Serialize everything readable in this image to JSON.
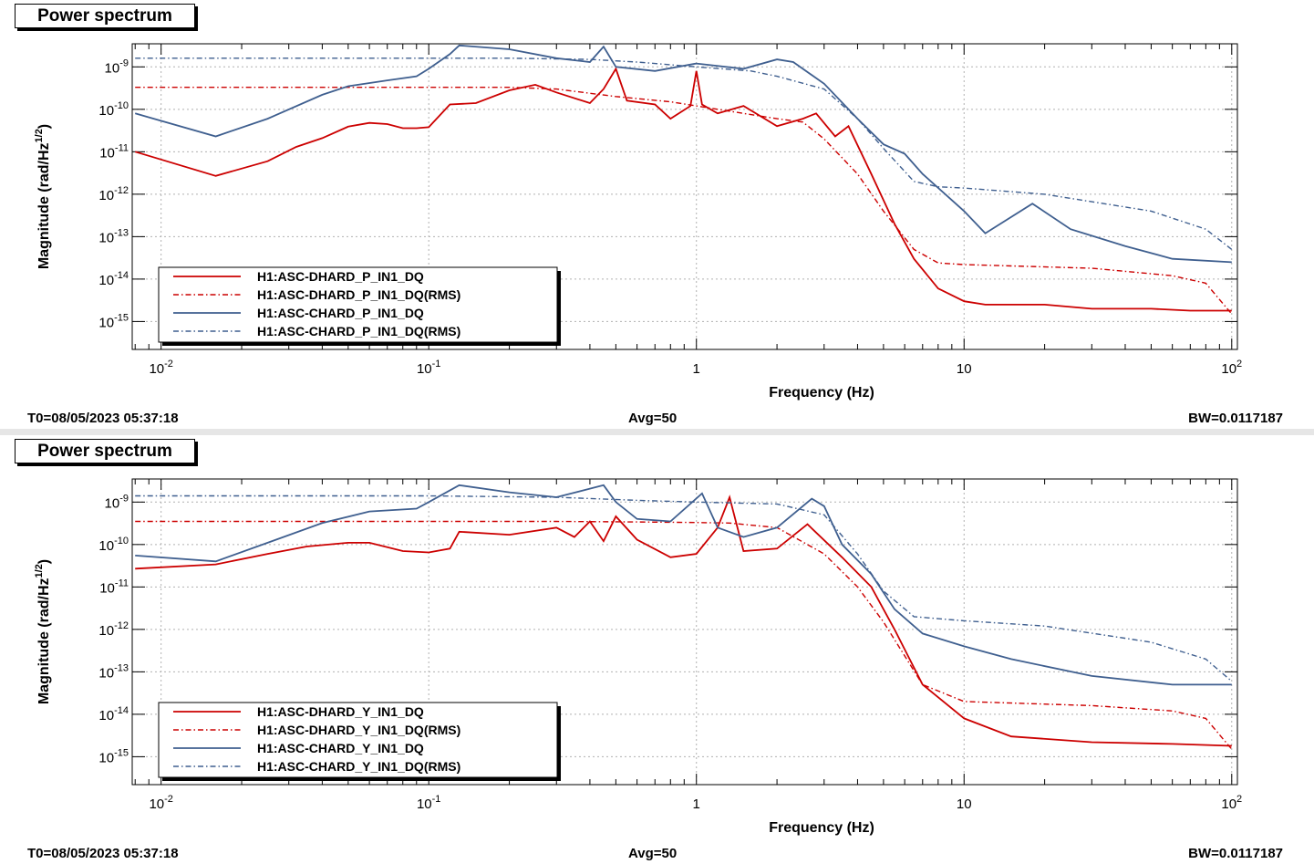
{
  "colors": {
    "red": "#cc0000",
    "blue": "#3f5f8f",
    "grid": "#b0b0b0"
  },
  "panels": [
    {
      "title": "Power spectrum",
      "footer": {
        "t0": "T0=08/05/2023 05:37:18",
        "avg": "Avg=50",
        "bw": "BW=0.0117187"
      },
      "legend": [
        "H1:ASC-DHARD_P_IN1_DQ",
        "H1:ASC-DHARD_P_IN1_DQ(RMS)",
        "H1:ASC-CHARD_P_IN1_DQ",
        "H1:ASC-CHARD_P_IN1_DQ(RMS)"
      ]
    },
    {
      "title": "Power spectrum",
      "footer": {
        "t0": "T0=08/05/2023 05:37:18",
        "avg": "Avg=50",
        "bw": "BW=0.0117187"
      },
      "legend": [
        "H1:ASC-DHARD_Y_IN1_DQ",
        "H1:ASC-DHARD_Y_IN1_DQ(RMS)",
        "H1:ASC-CHARD_Y_IN1_DQ",
        "H1:ASC-CHARD_Y_IN1_DQ(RMS)"
      ]
    }
  ],
  "chart_data": [
    {
      "type": "line",
      "title": "Power spectrum",
      "xlabel": "Frequency (Hz)",
      "ylabel": "Magnitude (rad/Hz^{1/2})",
      "xscale": "log",
      "yscale": "log",
      "xlim": [
        0.0078,
        105
      ],
      "ylim": [
        2.2e-16,
        3.5e-09
      ],
      "xticks": [
        [
          "10^{-2}",
          0.01
        ],
        [
          "10^{-1}",
          0.1
        ],
        [
          "1",
          1
        ],
        [
          "10",
          10
        ],
        [
          "10^{2}",
          100
        ]
      ],
      "yticks": [
        [
          "10^{-9}",
          1e-09
        ],
        [
          "10^{-10}",
          1e-10
        ],
        [
          "10^{-11}",
          1e-11
        ],
        [
          "10^{-12}",
          1e-12
        ],
        [
          "10^{-13}",
          1e-13
        ],
        [
          "10^{-14}",
          1e-14
        ],
        [
          "10^{-15}",
          1e-15
        ]
      ],
      "grid": true,
      "legend_position": "bottom-left",
      "series": [
        {
          "name": "H1:ASC-DHARD_P_IN1_DQ",
          "color": "#cc0000",
          "style": "solid",
          "x": [
            0.008,
            0.016,
            0.025,
            0.032,
            0.04,
            0.05,
            0.06,
            0.07,
            0.08,
            0.09,
            0.1,
            0.12,
            0.15,
            0.2,
            0.25,
            0.3,
            0.4,
            0.45,
            0.5,
            0.55,
            0.7,
            0.8,
            0.95,
            1.0,
            1.05,
            1.2,
            1.5,
            2.0,
            2.5,
            2.8,
            3.3,
            3.7,
            4.5,
            5.5,
            6.5,
            8,
            10,
            12,
            20,
            30,
            50,
            70,
            100
          ],
          "y": [
            1e-11,
            2.7e-12,
            6e-12,
            1.3e-11,
            2.1e-11,
            3.9e-11,
            4.8e-11,
            4.5e-11,
            3.6e-11,
            3.6e-11,
            3.8e-11,
            1.3e-10,
            1.4e-10,
            2.8e-10,
            3.8e-10,
            2.5e-10,
            1.4e-10,
            3e-10,
            9e-10,
            1.6e-10,
            1.3e-10,
            6e-11,
            1.2e-10,
            8e-10,
            1.3e-10,
            8e-11,
            1.2e-10,
            4e-11,
            6e-11,
            8e-11,
            2.3e-11,
            4e-11,
            3e-12,
            2e-13,
            3e-14,
            6e-15,
            3e-15,
            2.5e-15,
            2.5e-15,
            2e-15,
            2e-15,
            1.8e-15,
            1.8e-15
          ]
        },
        {
          "name": "H1:ASC-DHARD_P_IN1_DQ(RMS)",
          "color": "#cc0000",
          "style": "dash-dot",
          "x": [
            0.008,
            0.2,
            0.3,
            0.5,
            0.8,
            1.0,
            2.0,
            2.5,
            3.0,
            4.0,
            5.0,
            6.5,
            8,
            10,
            30,
            60,
            80,
            100
          ],
          "y": [
            3.3e-10,
            3.3e-10,
            3e-10,
            2e-10,
            1.5e-10,
            1.2e-10,
            6e-11,
            5e-11,
            2e-11,
            3e-12,
            4e-13,
            5e-14,
            2.4e-14,
            2.2e-14,
            1.8e-14,
            1.2e-14,
            8e-15,
            1.5e-15
          ]
        },
        {
          "name": "H1:ASC-CHARD_P_IN1_DQ",
          "color": "#3f5f8f",
          "style": "solid",
          "x": [
            0.008,
            0.016,
            0.025,
            0.04,
            0.05,
            0.07,
            0.09,
            0.1,
            0.12,
            0.13,
            0.2,
            0.3,
            0.4,
            0.45,
            0.5,
            0.7,
            1.0,
            1.5,
            2.0,
            2.3,
            3.0,
            4.0,
            5.0,
            6.0,
            7.0,
            10,
            12,
            18,
            25,
            40,
            60,
            100
          ],
          "y": [
            8e-11,
            2.3e-11,
            6e-11,
            2.2e-10,
            3.5e-10,
            4.8e-10,
            6e-10,
            9e-10,
            2e-09,
            3.2e-09,
            2.6e-09,
            1.6e-09,
            1.3e-09,
            3e-09,
            1e-09,
            8e-10,
            1.2e-09,
            9e-10,
            1.5e-09,
            1.3e-09,
            4e-10,
            6e-11,
            1.5e-11,
            9e-12,
            3e-12,
            4e-13,
            1.2e-13,
            6e-13,
            1.5e-13,
            6e-14,
            3e-14,
            2.5e-14
          ]
        },
        {
          "name": "H1:ASC-CHARD_P_IN1_DQ(RMS)",
          "color": "#3f5f8f",
          "style": "dash-dot",
          "x": [
            0.008,
            0.2,
            0.4,
            0.6,
            1.0,
            1.6,
            2.0,
            3.0,
            4.0,
            5.0,
            6.5,
            8,
            10,
            20,
            50,
            80,
            100
          ],
          "y": [
            1.6e-09,
            1.6e-09,
            1.5e-09,
            1.3e-09,
            1e-09,
            8e-10,
            6e-10,
            3e-10,
            6e-11,
            1.2e-11,
            2e-12,
            1.5e-12,
            1.4e-12,
            1e-12,
            4e-13,
            1.5e-13,
            5e-14
          ]
        }
      ]
    },
    {
      "type": "line",
      "title": "Power spectrum",
      "xlabel": "Frequency (Hz)",
      "ylabel": "Magnitude (rad/Hz^{1/2})",
      "xscale": "log",
      "yscale": "log",
      "xlim": [
        0.0078,
        105
      ],
      "ylim": [
        2.2e-16,
        3.5e-09
      ],
      "xticks": [
        [
          "10^{-2}",
          0.01
        ],
        [
          "10^{-1}",
          0.1
        ],
        [
          "1",
          1
        ],
        [
          "10",
          10
        ],
        [
          "10^{2}",
          100
        ]
      ],
      "yticks": [
        [
          "10^{-9}",
          1e-09
        ],
        [
          "10^{-10}",
          1e-10
        ],
        [
          "10^{-11}",
          1e-11
        ],
        [
          "10^{-12}",
          1e-12
        ],
        [
          "10^{-13}",
          1e-13
        ],
        [
          "10^{-14}",
          1e-14
        ],
        [
          "10^{-15}",
          1e-15
        ]
      ],
      "grid": true,
      "legend_position": "bottom-left",
      "series": [
        {
          "name": "H1:ASC-DHARD_Y_IN1_DQ",
          "color": "#cc0000",
          "style": "solid",
          "x": [
            0.008,
            0.016,
            0.025,
            0.035,
            0.05,
            0.06,
            0.08,
            0.1,
            0.12,
            0.13,
            0.2,
            0.3,
            0.35,
            0.4,
            0.45,
            0.5,
            0.6,
            0.8,
            1.0,
            1.2,
            1.33,
            1.5,
            2.0,
            2.6,
            3.5,
            4.5,
            5.5,
            7,
            10,
            15,
            30,
            60,
            100
          ],
          "y": [
            2.7e-11,
            3.4e-11,
            6e-11,
            9e-11,
            1.1e-10,
            1.1e-10,
            7e-11,
            6.5e-11,
            8e-11,
            2e-10,
            1.7e-10,
            2.5e-10,
            1.5e-10,
            3.5e-10,
            1.2e-10,
            4.6e-10,
            1.3e-10,
            5e-11,
            6e-11,
            2.5e-10,
            1.3e-09,
            7e-11,
            8e-11,
            3e-10,
            5e-11,
            1e-11,
            1e-12,
            5e-14,
            8e-15,
            3e-15,
            2.2e-15,
            2e-15,
            1.8e-15
          ]
        },
        {
          "name": "H1:ASC-DHARD_Y_IN1_DQ(RMS)",
          "color": "#cc0000",
          "style": "dash-dot",
          "x": [
            0.008,
            0.3,
            0.6,
            1.0,
            1.33,
            2.0,
            3.0,
            4.0,
            5.0,
            7,
            10,
            30,
            60,
            80,
            100
          ],
          "y": [
            3.5e-10,
            3.5e-10,
            3.4e-10,
            3.3e-10,
            3.2e-10,
            2.5e-10,
            6e-11,
            1e-11,
            1.5e-12,
            5e-14,
            2e-14,
            1.6e-14,
            1.2e-14,
            8e-15,
            1.5e-15
          ]
        },
        {
          "name": "H1:ASC-CHARD_Y_IN1_DQ",
          "color": "#3f5f8f",
          "style": "solid",
          "x": [
            0.008,
            0.016,
            0.025,
            0.04,
            0.06,
            0.09,
            0.1,
            0.13,
            0.2,
            0.3,
            0.45,
            0.5,
            0.6,
            0.8,
            1.05,
            1.2,
            1.5,
            2.0,
            2.7,
            3.0,
            3.5,
            4.5,
            5.5,
            7,
            10,
            15,
            30,
            60,
            100
          ],
          "y": [
            5.5e-11,
            4e-11,
            1.1e-10,
            3.2e-10,
            6e-10,
            7e-10,
            1e-09,
            2.5e-09,
            1.7e-09,
            1.3e-09,
            2.5e-09,
            1e-09,
            4e-10,
            3.5e-10,
            1.6e-09,
            2.5e-10,
            1.5e-10,
            2.5e-10,
            1.2e-09,
            8e-10,
            1e-10,
            2e-11,
            3e-12,
            8e-13,
            4e-13,
            2e-13,
            8e-14,
            5e-14,
            5e-14
          ]
        },
        {
          "name": "H1:ASC-CHARD_Y_IN1_DQ(RMS)",
          "color": "#3f5f8f",
          "style": "dash-dot",
          "x": [
            0.008,
            0.1,
            0.3,
            0.6,
            1.0,
            2.0,
            3.0,
            4.0,
            5.0,
            6.5,
            10,
            20,
            50,
            80,
            100
          ],
          "y": [
            1.4e-09,
            1.4e-09,
            1.3e-09,
            1.1e-09,
            1e-09,
            9e-10,
            5e-10,
            6e-11,
            8e-12,
            2e-12,
            1.6e-12,
            1.2e-12,
            5e-13,
            2e-13,
            6e-14
          ]
        }
      ]
    }
  ]
}
